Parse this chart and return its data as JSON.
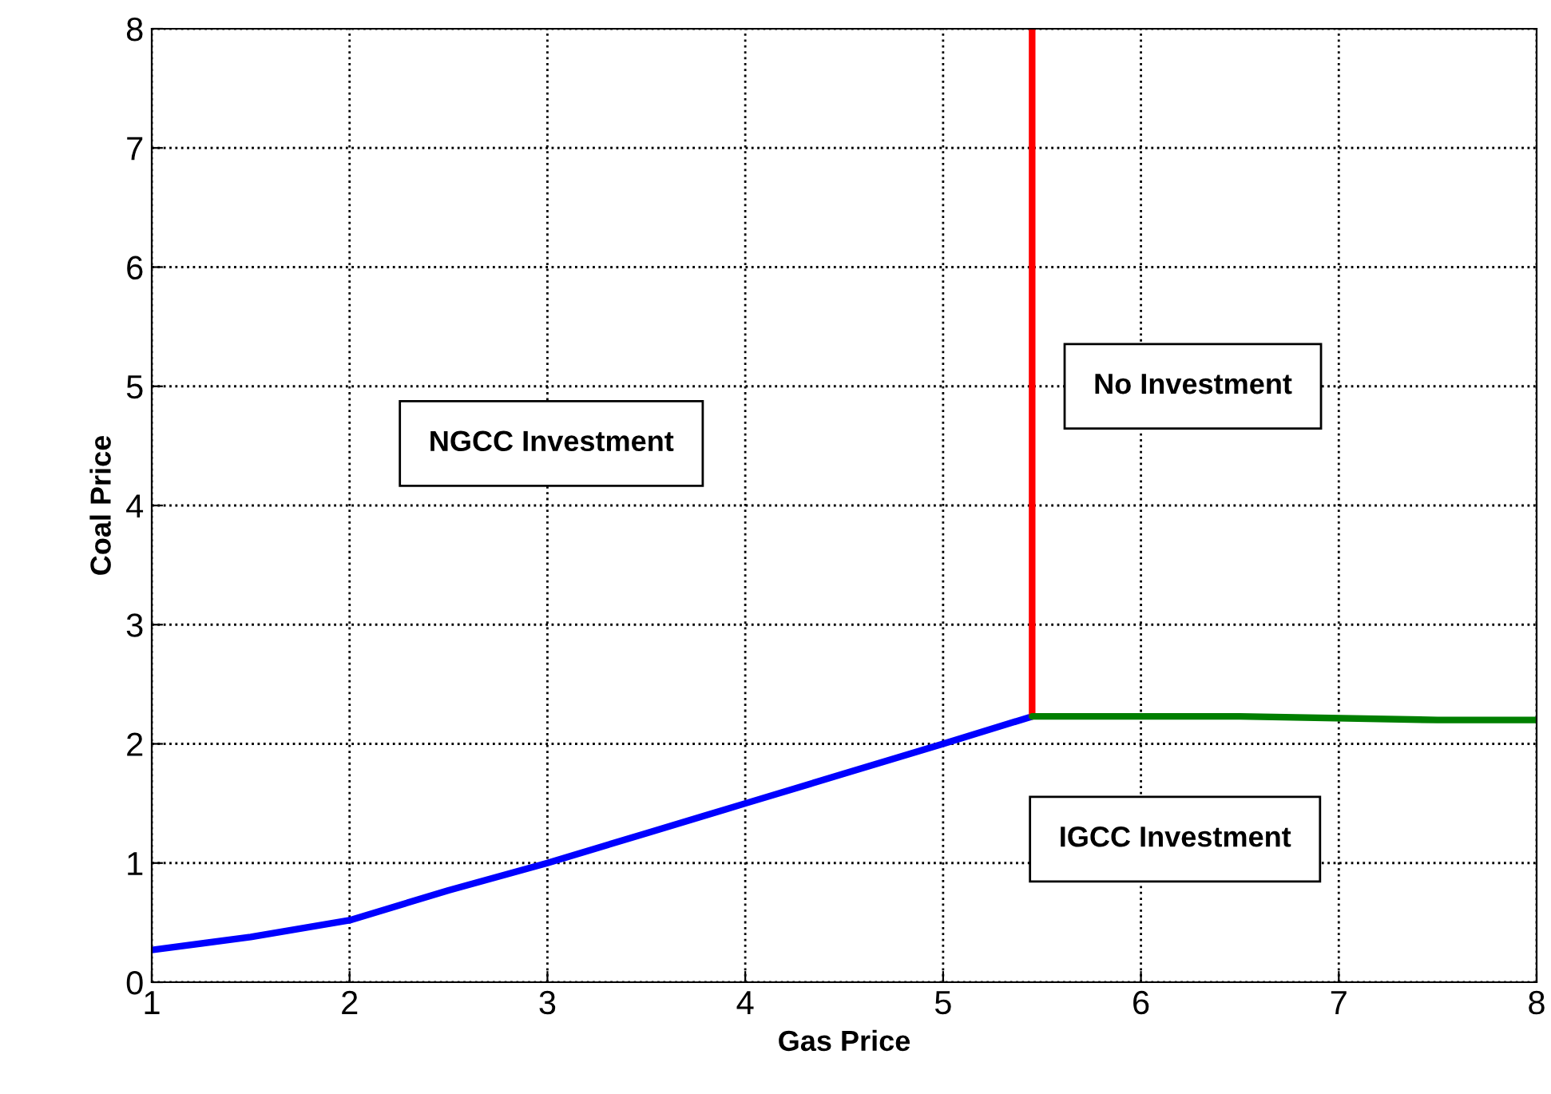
{
  "chart_data": {
    "type": "line",
    "xlabel": "Gas Price",
    "ylabel": "Coal Price",
    "series": [
      {
        "color": "#0000ff",
        "x": [
          1,
          1.5,
          2,
          2.5,
          3,
          3.5,
          4,
          4.5,
          5,
          5.45
        ],
        "values": [
          0.27,
          0.38,
          0.52,
          0.77,
          1.0,
          1.25,
          1.5,
          1.75,
          2.0,
          2.23
        ]
      },
      {
        "color": "#ff0000",
        "x": [
          5.45,
          5.45
        ],
        "values": [
          2.23,
          8
        ]
      },
      {
        "color": "#007f00",
        "x": [
          5.45,
          6.5,
          7.5,
          8
        ],
        "values": [
          2.23,
          2.23,
          2.2,
          2.2
        ]
      }
    ],
    "xlim": [
      1,
      8
    ],
    "ylim": [
      0,
      8
    ],
    "xticks": [
      1,
      2,
      3,
      4,
      5,
      6,
      7,
      8
    ],
    "yticks": [
      0,
      1,
      2,
      3,
      4,
      5,
      6,
      7,
      8
    ],
    "grid": true,
    "line_style": "solid",
    "marker": "none",
    "annotations": [
      "NGCC Investment",
      "No Investment",
      "IGCC Investment"
    ]
  }
}
